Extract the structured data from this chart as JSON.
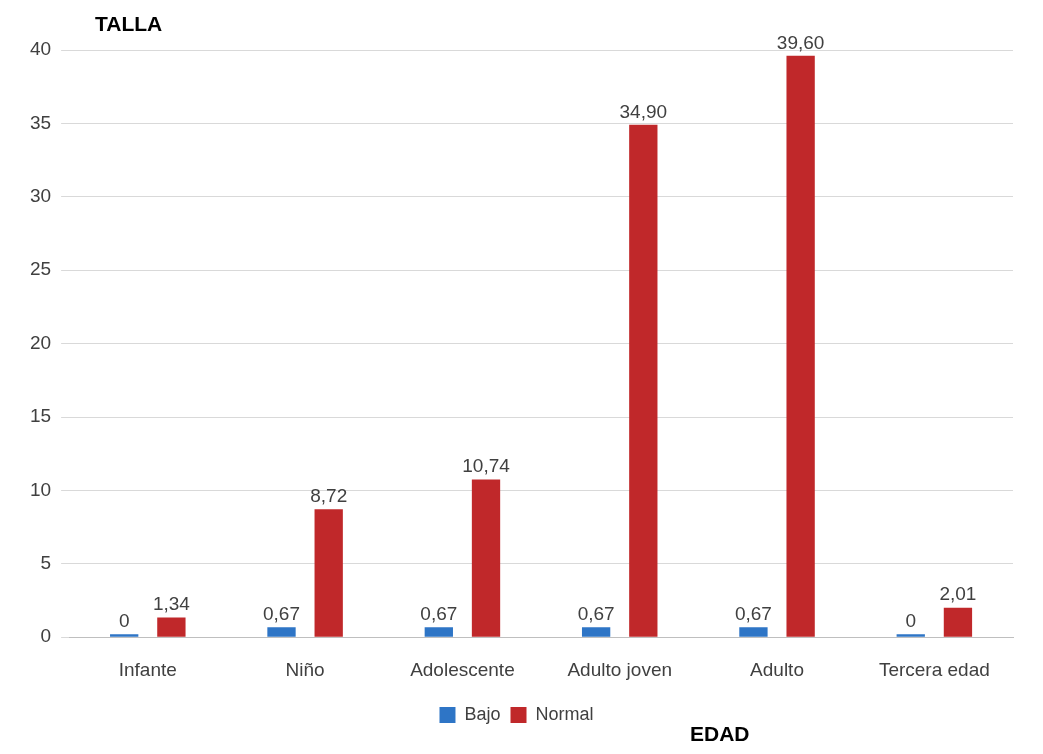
{
  "chart_data": {
    "type": "bar",
    "ylabel": "TALLA",
    "xlabel": "EDAD",
    "categories": [
      "Infante",
      "Niño",
      "Adolescente",
      "Adulto joven",
      "Adulto",
      "Tercera edad"
    ],
    "series": [
      {
        "name": "Bajo",
        "color": "#2e75c6",
        "values": [
          0,
          0.67,
          0.67,
          0.67,
          0.67,
          0
        ],
        "value_labels": [
          "0",
          "0,67",
          "0,67",
          "0,67",
          "0,67",
          "0"
        ]
      },
      {
        "name": "Normal",
        "color": "#c0282a",
        "values": [
          1.34,
          8.72,
          10.74,
          34.9,
          39.6,
          2.01
        ],
        "value_labels": [
          "1,34",
          "8,72",
          "10,74",
          "34,90",
          "39,60",
          "2,01"
        ]
      }
    ],
    "ylim": [
      0,
      40
    ],
    "yticks": [
      0,
      5,
      10,
      15,
      20,
      25,
      30,
      35,
      40
    ],
    "grid": "y",
    "legend": "bottom"
  }
}
